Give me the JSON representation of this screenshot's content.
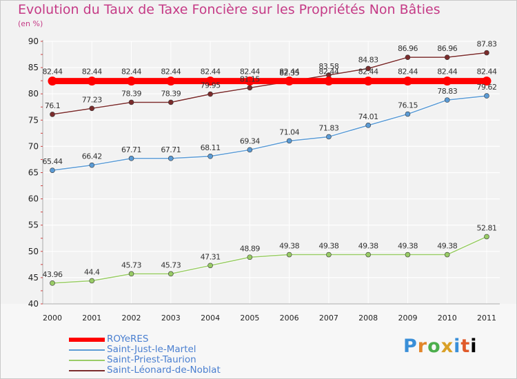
{
  "chart_data": {
    "type": "line",
    "title": "Evolution du Taux de Taxe Foncière sur les Propriétés Non Bâties",
    "unit_label": "(en %)",
    "x": [
      "2000",
      "2001",
      "2002",
      "2003",
      "2004",
      "2005",
      "2006",
      "2007",
      "2008",
      "2009",
      "2010",
      "2011"
    ],
    "ylim": [
      40,
      90
    ],
    "yticks": [
      "40",
      "45",
      "50",
      "55",
      "60",
      "65",
      "70",
      "75",
      "80",
      "85",
      "90"
    ],
    "series": [
      {
        "name": "ROYeRES",
        "color": "#ff0000",
        "values": [
          82.44,
          82.44,
          82.44,
          82.44,
          82.44,
          82.44,
          82.44,
          82.44,
          82.44,
          82.44,
          82.44,
          82.44
        ],
        "labels": [
          "82.44",
          "82.44",
          "82.44",
          "82.44",
          "82.44",
          "82.44",
          "82.44",
          "82.44",
          "82.44",
          "82.44",
          "82.44",
          "82.44"
        ]
      },
      {
        "name": "Saint-Just-le-Martel",
        "color": "#5b9bd5",
        "values": [
          65.44,
          66.42,
          67.71,
          67.71,
          68.11,
          69.34,
          71.04,
          71.83,
          74.01,
          76.15,
          78.83,
          79.62
        ],
        "labels": [
          "65.44",
          "66.42",
          "67.71",
          "67.71",
          "68.11",
          "69.34",
          "71.04",
          "71.83",
          "74.01",
          "76.15",
          "78.83",
          "79.62"
        ]
      },
      {
        "name": "Saint-Priest-Taurion",
        "color": "#99cc66",
        "values": [
          43.96,
          44.4,
          45.73,
          45.73,
          47.31,
          48.89,
          49.38,
          49.38,
          49.38,
          49.38,
          49.38,
          52.81
        ],
        "labels": [
          "43.96",
          "44.4",
          "45.73",
          "45.73",
          "47.31",
          "48.89",
          "49.38",
          "49.38",
          "49.38",
          "49.38",
          "49.38",
          "52.81"
        ]
      },
      {
        "name": "Saint-Léonard-de-Noblat",
        "color": "#7b2c2c",
        "values": [
          76.1,
          77.23,
          78.39,
          78.39,
          79.95,
          81.15,
          82.35,
          83.58,
          84.83,
          86.96,
          86.96,
          87.83
        ],
        "labels": [
          "76.1",
          "77.23",
          "78.39",
          "78.39",
          "79.95",
          "81.15",
          "82.35",
          "83.58",
          "84.83",
          "86.96",
          "86.96",
          "87.83"
        ]
      }
    ]
  },
  "logo": {
    "letters": [
      "P",
      "r",
      "o",
      "x",
      "i",
      "t",
      "i"
    ]
  }
}
